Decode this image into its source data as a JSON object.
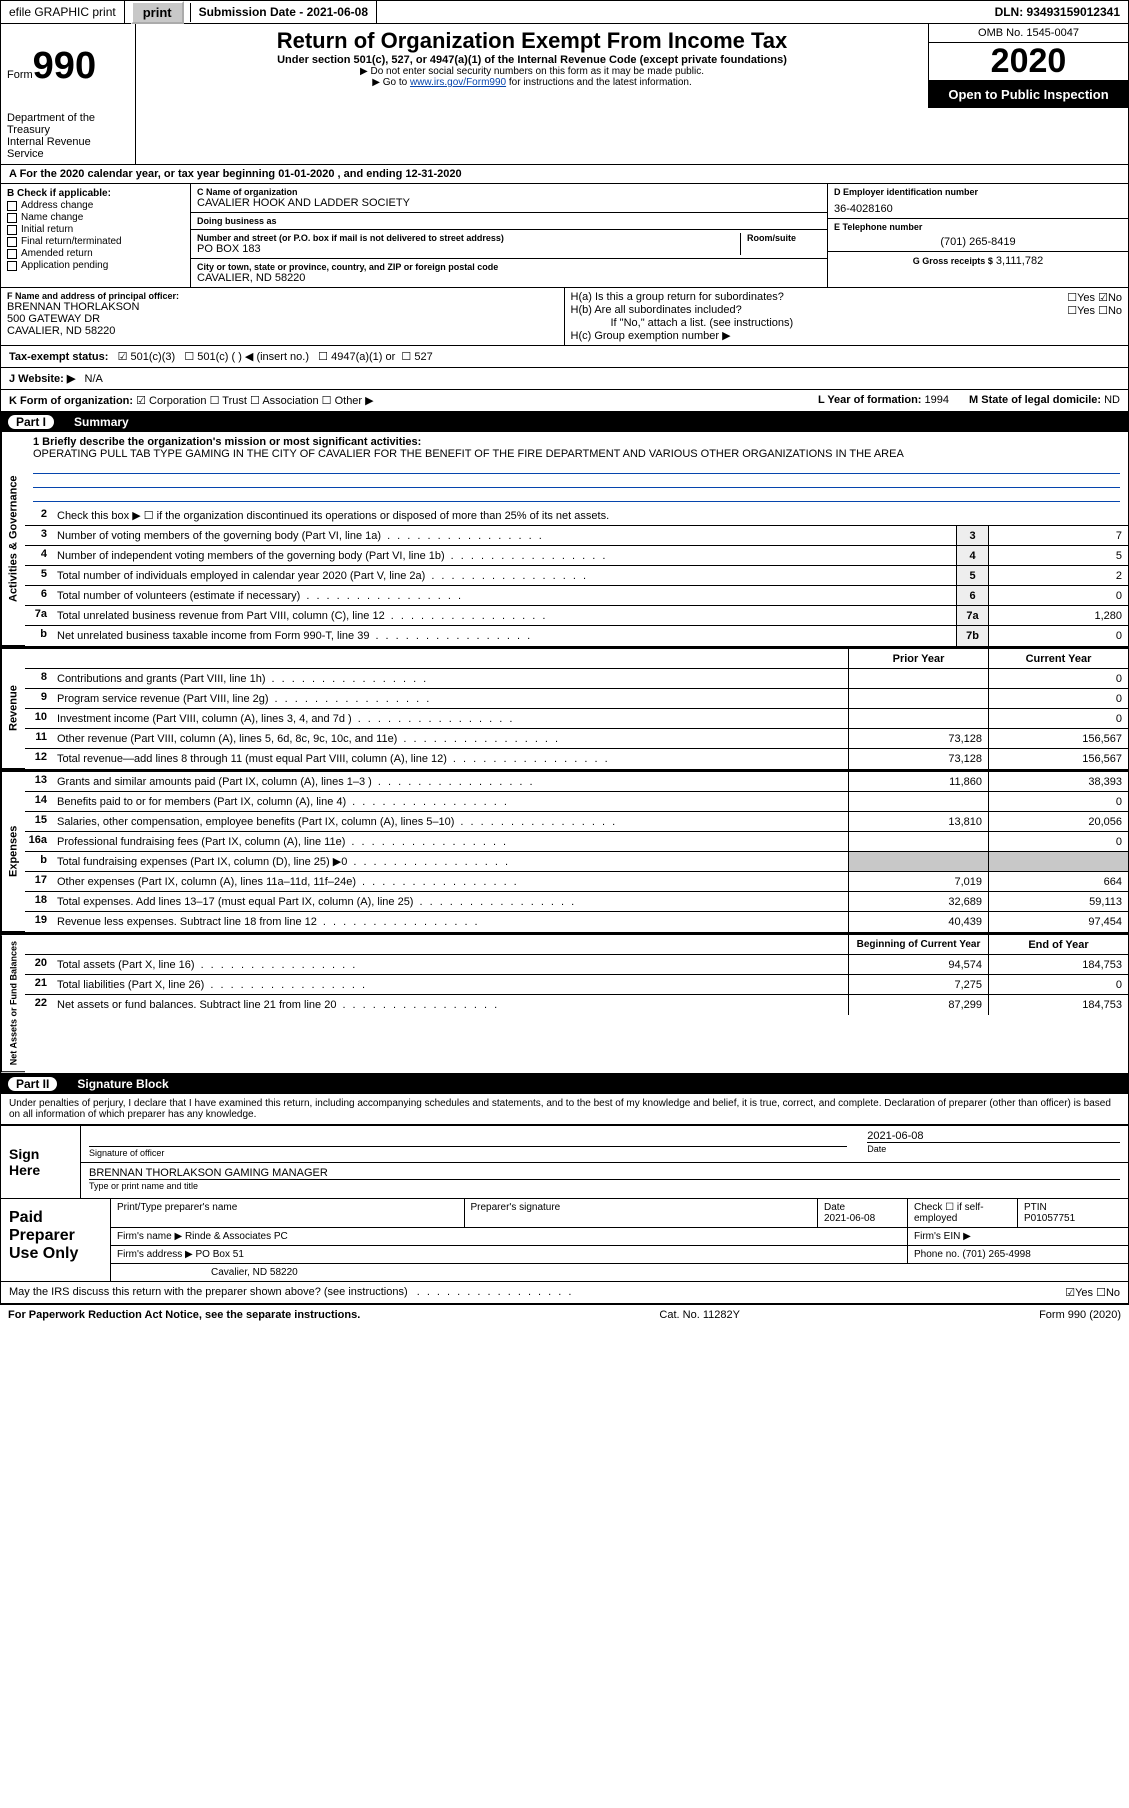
{
  "topbar": {
    "efile": "efile GRAPHIC print",
    "submission_label": "Submission Date - 2021-06-08",
    "dln": "DLN: 93493159012341"
  },
  "header": {
    "form_word": "Form",
    "form_num": "990",
    "title": "Return of Organization Exempt From Income Tax",
    "subtitle": "Under section 501(c), 527, or 4947(a)(1) of the Internal Revenue Code (except private foundations)",
    "note1": "▶ Do not enter social security numbers on this form as it may be made public.",
    "note2_pre": "▶ Go to ",
    "note2_link": "www.irs.gov/Form990",
    "note2_post": " for instructions and the latest information.",
    "dept": "Department of the Treasury\nInternal Revenue Service",
    "omb": "OMB No. 1545-0047",
    "year": "2020",
    "open_public": "Open to Public Inspection"
  },
  "period": "A For the 2020 calendar year, or tax year beginning 01-01-2020    , and ending 12-31-2020",
  "block_b": {
    "label": "B Check if applicable:",
    "items": [
      "Address change",
      "Name change",
      "Initial return",
      "Final return/terminated",
      "Amended return",
      "Application pending"
    ]
  },
  "block_c": {
    "name_lbl": "C Name of organization",
    "name": "CAVALIER HOOK AND LADDER SOCIETY",
    "dba_lbl": "Doing business as",
    "dba": "",
    "addr_lbl": "Number and street (or P.O. box if mail is not delivered to street address)",
    "room_lbl": "Room/suite",
    "addr": "PO BOX 183",
    "city_lbl": "City or town, state or province, country, and ZIP or foreign postal code",
    "city": "CAVALIER, ND  58220"
  },
  "block_d": {
    "lbl": "D Employer identification number",
    "val": "36-4028160"
  },
  "block_e": {
    "lbl": "E Telephone number",
    "val": "(701) 265-8419"
  },
  "block_g": {
    "lbl": "G Gross receipts $",
    "val": "3,111,782"
  },
  "block_f": {
    "lbl": "F  Name and address of principal officer:",
    "name": "BRENNAN THORLAKSON",
    "addr1": "500 GATEWAY DR",
    "addr2": "CAVALIER, ND  58220"
  },
  "block_h": {
    "a_lbl": "H(a)  Is this a group return for subordinates?",
    "a_yes": "Yes",
    "a_no": "No",
    "b_lbl": "H(b)  Are all subordinates included?",
    "b_yes": "Yes",
    "b_no": "No",
    "b_note": "If \"No,\" attach a list. (see instructions)",
    "c_lbl": "H(c)  Group exemption number ▶"
  },
  "tax_exempt": {
    "lbl": "Tax-exempt status:",
    "opt1": "501(c)(3)",
    "opt2": "501(c) (   ) ◀ (insert no.)",
    "opt3": "4947(a)(1) or",
    "opt4": "527"
  },
  "website": {
    "lbl": "J   Website: ▶",
    "val": "N/A"
  },
  "block_k": {
    "lbl": "K Form of organization:",
    "opts": [
      "Corporation",
      "Trust",
      "Association",
      "Other ▶"
    ]
  },
  "block_l": {
    "lbl": "L Year of formation:",
    "val": "1994"
  },
  "block_m": {
    "lbl": "M State of legal domicile:",
    "val": "ND"
  },
  "part1": {
    "num": "Part I",
    "title": "Summary"
  },
  "mission": {
    "lbl": "1   Briefly describe the organization's mission or most significant activities:",
    "text": "OPERATING PULL TAB TYPE GAMING IN THE CITY OF CAVALIER FOR THE BENEFIT OF THE FIRE DEPARTMENT AND VARIOUS OTHER ORGANIZATIONS IN THE AREA"
  },
  "line2": "Check this box ▶ ☐  if the organization discontinued its operations or disposed of more than 25% of its net assets.",
  "summary_lines_top": [
    {
      "n": "3",
      "d": "Number of voting members of the governing body (Part VI, line 1a)",
      "box": "3",
      "v": "7"
    },
    {
      "n": "4",
      "d": "Number of independent voting members of the governing body (Part VI, line 1b)",
      "box": "4",
      "v": "5"
    },
    {
      "n": "5",
      "d": "Total number of individuals employed in calendar year 2020 (Part V, line 2a)",
      "box": "5",
      "v": "2"
    },
    {
      "n": "6",
      "d": "Total number of volunteers (estimate if necessary)",
      "box": "6",
      "v": "0"
    },
    {
      "n": "7a",
      "d": "Total unrelated business revenue from Part VIII, column (C), line 12",
      "box": "7a",
      "v": "1,280"
    },
    {
      "n": "b",
      "d": "Net unrelated business taxable income from Form 990-T, line 39",
      "box": "7b",
      "v": "0"
    }
  ],
  "col_headers": {
    "prior": "Prior Year",
    "current": "Current Year"
  },
  "revenue_lines": [
    {
      "n": "8",
      "d": "Contributions and grants (Part VIII, line 1h)",
      "p": "",
      "c": "0"
    },
    {
      "n": "9",
      "d": "Program service revenue (Part VIII, line 2g)",
      "p": "",
      "c": "0"
    },
    {
      "n": "10",
      "d": "Investment income (Part VIII, column (A), lines 3, 4, and 7d )",
      "p": "",
      "c": "0"
    },
    {
      "n": "11",
      "d": "Other revenue (Part VIII, column (A), lines 5, 6d, 8c, 9c, 10c, and 11e)",
      "p": "73,128",
      "c": "156,567"
    },
    {
      "n": "12",
      "d": "Total revenue—add lines 8 through 11 (must equal Part VIII, column (A), line 12)",
      "p": "73,128",
      "c": "156,567"
    }
  ],
  "expense_lines": [
    {
      "n": "13",
      "d": "Grants and similar amounts paid (Part IX, column (A), lines 1–3 )",
      "p": "11,860",
      "c": "38,393"
    },
    {
      "n": "14",
      "d": "Benefits paid to or for members (Part IX, column (A), line 4)",
      "p": "",
      "c": "0"
    },
    {
      "n": "15",
      "d": "Salaries, other compensation, employee benefits (Part IX, column (A), lines 5–10)",
      "p": "13,810",
      "c": "20,056"
    },
    {
      "n": "16a",
      "d": "Professional fundraising fees (Part IX, column (A), line 11e)",
      "p": "",
      "c": "0"
    },
    {
      "n": "b",
      "d": "Total fundraising expenses (Part IX, column (D), line 25) ▶0",
      "p": "shaded",
      "c": "shaded"
    },
    {
      "n": "17",
      "d": "Other expenses (Part IX, column (A), lines 11a–11d, 11f–24e)",
      "p": "7,019",
      "c": "664"
    },
    {
      "n": "18",
      "d": "Total expenses. Add lines 13–17 (must equal Part IX, column (A), line 25)",
      "p": "32,689",
      "c": "59,113"
    },
    {
      "n": "19",
      "d": "Revenue less expenses. Subtract line 18 from line 12",
      "p": "40,439",
      "c": "97,454"
    }
  ],
  "net_headers": {
    "begin": "Beginning of Current Year",
    "end": "End of Year"
  },
  "net_lines": [
    {
      "n": "20",
      "d": "Total assets (Part X, line 16)",
      "p": "94,574",
      "c": "184,753"
    },
    {
      "n": "21",
      "d": "Total liabilities (Part X, line 26)",
      "p": "7,275",
      "c": "0"
    },
    {
      "n": "22",
      "d": "Net assets or fund balances. Subtract line 21 from line 20",
      "p": "87,299",
      "c": "184,753"
    }
  ],
  "vert_labels": {
    "ag": "Activities & Governance",
    "rev": "Revenue",
    "exp": "Expenses",
    "net": "Net Assets or Fund Balances"
  },
  "part2": {
    "num": "Part II",
    "title": "Signature Block"
  },
  "penalties": "Under penalties of perjury, I declare that I have examined this return, including accompanying schedules and statements, and to the best of my knowledge and belief, it is true, correct, and complete. Declaration of preparer (other than officer) is based on all information of which preparer has any knowledge.",
  "sign": {
    "here": "Sign Here",
    "sig_lbl": "Signature of officer",
    "date": "2021-06-08",
    "date_lbl": "Date",
    "name": "BRENNAN THORLAKSON  GAMING MANAGER",
    "name_lbl": "Type or print name and title"
  },
  "preparer": {
    "title": "Paid Preparer Use Only",
    "print_lbl": "Print/Type preparer's name",
    "sig_lbl": "Preparer's signature",
    "date_lbl": "Date",
    "date": "2021-06-08",
    "check_lbl": "Check ☐ if self-employed",
    "ptin_lbl": "PTIN",
    "ptin": "P01057751",
    "firm_name_lbl": "Firm's name    ▶",
    "firm_name": "Rinde & Associates PC",
    "firm_ein_lbl": "Firm's EIN ▶",
    "firm_addr_lbl": "Firm's address ▶",
    "firm_addr": "PO Box 51",
    "firm_city": "Cavalier, ND  58220",
    "phone_lbl": "Phone no.",
    "phone": "(701) 265-4998"
  },
  "discuss": {
    "q": "May the IRS discuss this return with the preparer shown above? (see instructions)",
    "yes": "Yes",
    "no": "No"
  },
  "footer": {
    "left": "For Paperwork Reduction Act Notice, see the separate instructions.",
    "mid": "Cat. No. 11282Y",
    "right": "Form 990 (2020)"
  }
}
